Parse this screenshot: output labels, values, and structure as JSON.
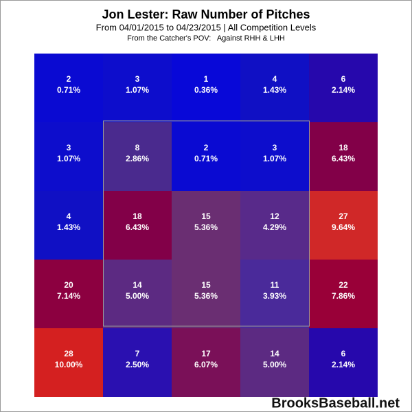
{
  "chart_data": {
    "type": "heatmap",
    "title": "Jon Lester: Raw Number of Pitches",
    "subtitle": "From 04/01/2015 to 04/23/2015 | All Competition Levels",
    "note": "From the Catcher's POV:   Against RHH & LHH",
    "watermark": "BrooksBaseball.net",
    "counts": [
      [
        2,
        3,
        1,
        4,
        6
      ],
      [
        3,
        8,
        2,
        3,
        18
      ],
      [
        4,
        18,
        15,
        12,
        27
      ],
      [
        20,
        14,
        15,
        11,
        22
      ],
      [
        28,
        7,
        17,
        14,
        6
      ]
    ],
    "percents": [
      [
        0.71,
        1.07,
        0.36,
        1.43,
        2.14
      ],
      [
        1.07,
        2.86,
        0.71,
        1.07,
        6.43
      ],
      [
        1.43,
        6.43,
        5.36,
        4.29,
        9.64
      ],
      [
        7.14,
        5.0,
        5.36,
        3.93,
        7.86
      ],
      [
        10.0,
        2.5,
        6.07,
        5.0,
        2.14
      ]
    ],
    "percent_labels": [
      [
        "0.71%",
        "1.07%",
        "0.36%",
        "1.43%",
        "2.14%"
      ],
      [
        "1.07%",
        "2.86%",
        "0.71%",
        "1.07%",
        "6.43%"
      ],
      [
        "1.43%",
        "6.43%",
        "5.36%",
        "4.29%",
        "9.64%"
      ],
      [
        "7.14%",
        "5.00%",
        "5.36%",
        "3.93%",
        "7.86%"
      ],
      [
        "10.00%",
        "2.50%",
        "6.07%",
        "5.00%",
        "2.14%"
      ]
    ],
    "cell_colors": [
      [
        "#0a0ad2",
        "#0d0dcc",
        "#0808d8",
        "#1010c4",
        "#2608ac"
      ],
      [
        "#0d0dcc",
        "#4a2a8e",
        "#0a0ad2",
        "#0d0dcc",
        "#820048"
      ],
      [
        "#1010c4",
        "#820048",
        "#6a2e72",
        "#582a8a",
        "#d02828"
      ],
      [
        "#8c0040",
        "#5c2a82",
        "#6a2e72",
        "#4a2a9a",
        "#990038"
      ],
      [
        "#d42020",
        "#2a10b0",
        "#7a1058",
        "#5c2a82",
        "#2608ac"
      ]
    ]
  }
}
